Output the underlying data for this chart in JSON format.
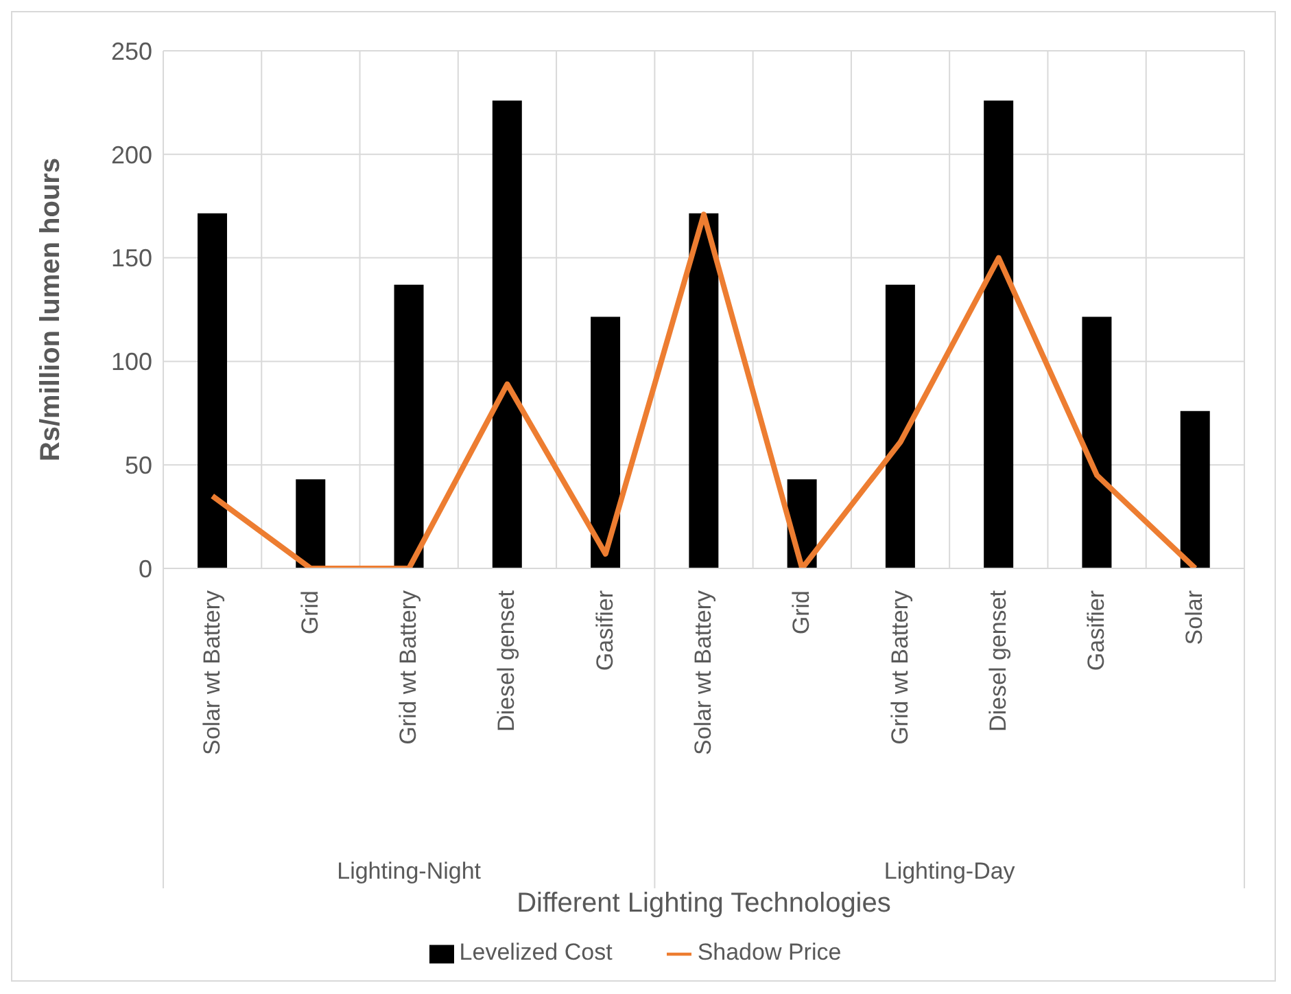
{
  "chart_data": {
    "type": "bar",
    "xlabel": "Different Lighting Technologies",
    "ylabel": "Rs/million lumen hours",
    "categories": [
      "Solar wt Battery",
      "Grid",
      "Grid wt Battery",
      "Diesel genset",
      "Gasifier",
      "Solar wt Battery",
      "Grid",
      "Grid wt Battery",
      "Diesel genset",
      "Gasifier",
      "Solar"
    ],
    "series": [
      {
        "name": "Levelized Cost",
        "color": "#000000",
        "values": [
          171.5,
          43,
          137,
          226,
          121.5,
          171.5,
          43,
          137,
          226,
          121.5,
          76
        ]
      },
      {
        "name": "Shadow Price",
        "type": "line",
        "color": "#ed7d31",
        "values": [
          35,
          0,
          0,
          89,
          7,
          171,
          0,
          61,
          150,
          45,
          0
        ]
      }
    ],
    "annotations": [
      "Lighting-Night",
      "Lighting-Day"
    ],
    "ylim": [
      0,
      250
    ],
    "yticks": [
      0,
      50,
      100,
      150,
      200,
      250
    ],
    "grid": true,
    "legend": "bottom",
    "marker": "none"
  }
}
